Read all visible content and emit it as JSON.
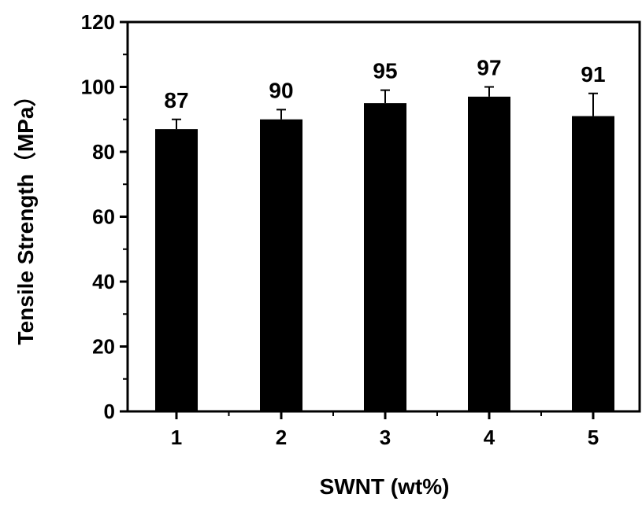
{
  "chart_data": {
    "type": "bar",
    "title": "",
    "xlabel": "SWNT (wt%)",
    "ylabel": "Tensile Strength（MPa）",
    "categories": [
      "1",
      "2",
      "3",
      "4",
      "5"
    ],
    "values": [
      87,
      90,
      95,
      97,
      91
    ],
    "error": [
      3,
      3,
      4,
      3,
      7
    ],
    "data_labels": [
      "87",
      "90",
      "95",
      "97",
      "91"
    ],
    "ylim": [
      0,
      120
    ],
    "yticks": [
      "0",
      "20",
      "40",
      "60",
      "80",
      "100",
      "120"
    ],
    "grid": false,
    "legend": "none",
    "bar_color": "#000000"
  }
}
